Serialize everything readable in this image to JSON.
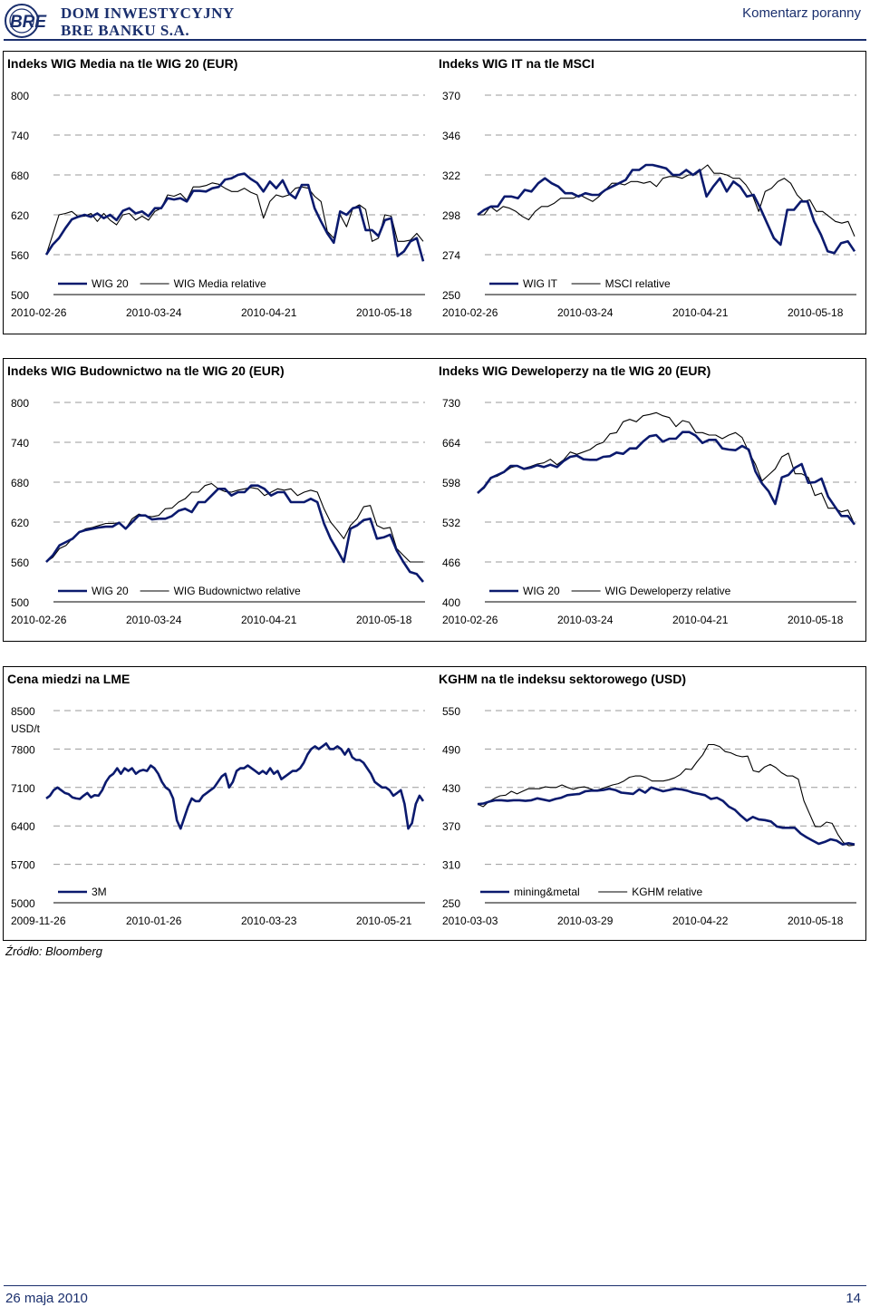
{
  "header": {
    "brand_line1": "DOM INWESTYCYJNY",
    "brand_line2": "BRE BANKU S.A.",
    "logo_text": "BRE",
    "doc_type": "Komentarz poranny"
  },
  "footer": {
    "date": "26 maja 2010",
    "page": "14"
  },
  "source_note": "Źródło: Bloomberg",
  "colors": {
    "primary_series": "#0b1a6e",
    "secondary_series": "#000000",
    "grid": "#9a9a9a",
    "brand": "#1a2f6d"
  },
  "chart_data": [
    {
      "type": "line",
      "title": "Indeks WIG Media na tle WIG 20 (EUR)",
      "y_ticks": [
        "800",
        "740",
        "680",
        "620",
        "560",
        "500"
      ],
      "ylim": [
        500,
        800
      ],
      "x_tick_labels": [
        "2010-02-26",
        "2010-03-24",
        "2010-04-21",
        "2010-05-18"
      ],
      "series": [
        {
          "name": "WIG 20",
          "values": [
            560,
            575,
            585,
            600,
            613,
            617,
            620,
            617,
            622,
            615,
            620,
            612,
            626,
            630,
            622,
            625,
            618,
            630,
            630,
            645,
            643,
            645,
            640,
            656,
            656,
            655,
            660,
            662,
            673,
            675,
            680,
            682,
            674,
            668,
            655,
            670,
            660,
            672,
            652,
            645,
            665,
            665,
            630,
            610,
            592,
            578,
            625,
            620,
            630,
            632,
            597,
            597,
            588,
            612,
            615,
            558,
            565,
            580,
            585,
            550
          ]
        },
        {
          "name": "WIG Media relative",
          "values": [
            560,
            590,
            620,
            622,
            625,
            617,
            618,
            622,
            610,
            622,
            612,
            605,
            620,
            622,
            612,
            618,
            612,
            625,
            630,
            650,
            648,
            652,
            642,
            662,
            662,
            664,
            668,
            666,
            660,
            655,
            655,
            660,
            654,
            650,
            615,
            640,
            650,
            647,
            650,
            660,
            662,
            660,
            648,
            640,
            595,
            585,
            620,
            602,
            630,
            635,
            628,
            580,
            585,
            620,
            618,
            580,
            580,
            582,
            592,
            580
          ]
        }
      ]
    },
    {
      "type": "line",
      "title": "Indeks WIG IT na tle MSCI",
      "y_ticks": [
        "370",
        "346",
        "322",
        "298",
        "274",
        "250"
      ],
      "ylim": [
        250,
        370
      ],
      "x_tick_labels": [
        "2010-02-26",
        "2010-03-24",
        "2010-04-21",
        "2010-05-18"
      ],
      "series": [
        {
          "name": "WIG IT",
          "values": [
            298,
            301,
            303,
            303,
            309,
            309,
            308,
            313,
            312,
            317,
            320,
            317,
            315,
            311,
            311,
            309,
            311,
            310,
            310,
            313,
            315,
            317,
            319,
            325,
            325,
            328,
            328,
            327,
            326,
            322,
            322,
            325,
            322,
            325,
            309,
            315,
            320,
            312,
            318,
            315,
            309,
            310,
            302,
            293,
            284,
            280,
            301,
            301,
            306,
            306,
            294,
            286,
            276,
            275,
            281,
            282,
            276
          ]
        },
        {
          "name": "MSCI relative",
          "values": [
            298,
            298,
            303,
            300,
            303,
            302,
            300,
            297,
            295,
            300,
            303,
            303,
            305,
            308,
            308,
            308,
            310,
            308,
            306,
            309,
            313,
            317,
            317,
            316,
            318,
            318,
            317,
            318,
            315,
            320,
            321,
            321,
            320,
            322,
            322,
            325,
            328,
            323,
            323,
            322,
            320,
            320,
            316,
            310,
            300,
            312,
            314,
            318,
            320,
            317,
            310,
            306,
            307,
            300,
            300,
            297,
            294,
            293,
            294,
            285
          ]
        }
      ]
    },
    {
      "type": "line",
      "title": "Indeks WIG Budownictwo na tle WIG 20 (EUR)",
      "y_ticks": [
        "800",
        "740",
        "680",
        "620",
        "560",
        "500"
      ],
      "ylim": [
        500,
        800
      ],
      "x_tick_labels": [
        "2010-02-26",
        "2010-03-24",
        "2010-04-21",
        "2010-05-18"
      ],
      "series": [
        {
          "name": "WIG 20",
          "values": [
            560,
            570,
            585,
            590,
            595,
            605,
            608,
            610,
            612,
            613,
            613,
            619,
            610,
            620,
            630,
            630,
            624,
            625,
            625,
            629,
            637,
            640,
            635,
            650,
            650,
            660,
            670,
            670,
            660,
            665,
            665,
            675,
            675,
            670,
            660,
            665,
            665,
            650,
            650,
            650,
            655,
            650,
            618,
            595,
            578,
            560,
            610,
            615,
            623,
            625,
            595,
            597,
            601,
            577,
            560,
            545,
            542,
            530
          ]
        },
        {
          "name": "WIG Budownictwo relative",
          "values": [
            560,
            567,
            580,
            585,
            596,
            605,
            610,
            612,
            615,
            618,
            618,
            619,
            610,
            625,
            632,
            629,
            628,
            630,
            640,
            641,
            650,
            655,
            665,
            665,
            675,
            678,
            670,
            666,
            665,
            668,
            670,
            672,
            670,
            660,
            665,
            670,
            668,
            670,
            660,
            665,
            668,
            665,
            640,
            620,
            608,
            595,
            615,
            625,
            643,
            645,
            615,
            610,
            612,
            580,
            570,
            560,
            560,
            560
          ]
        }
      ]
    },
    {
      "type": "line",
      "title": "Indeks WIG Deweloperzy na tle WIG 20 (EUR)",
      "y_ticks": [
        "730",
        "664",
        "598",
        "532",
        "466",
        "400"
      ],
      "ylim": [
        400,
        730
      ],
      "x_tick_labels": [
        "2010-02-26",
        "2010-03-24",
        "2010-04-21",
        "2010-05-18"
      ],
      "series": [
        {
          "name": "WIG 20",
          "values": [
            580,
            590,
            605,
            610,
            615,
            625,
            625,
            620,
            622,
            626,
            623,
            627,
            623,
            633,
            640,
            642,
            636,
            635,
            635,
            640,
            641,
            647,
            645,
            654,
            654,
            665,
            674,
            676,
            665,
            670,
            670,
            681,
            681,
            675,
            663,
            668,
            668,
            654,
            652,
            651,
            658,
            652,
            616,
            596,
            583,
            562,
            606,
            610,
            622,
            628,
            597,
            598,
            604,
            574,
            558,
            542,
            542,
            528
          ]
        },
        {
          "name": "WIG Deweloperzy relative",
          "values": [
            580,
            588,
            605,
            608,
            614,
            622,
            625,
            621,
            624,
            628,
            630,
            636,
            627,
            635,
            648,
            644,
            648,
            652,
            660,
            664,
            678,
            680,
            698,
            702,
            698,
            708,
            710,
            713,
            708,
            705,
            690,
            700,
            697,
            680,
            680,
            676,
            676,
            670,
            676,
            680,
            672,
            648,
            628,
            600,
            610,
            620,
            640,
            646,
            612,
            612,
            606,
            576,
            580,
            555,
            555,
            549,
            552,
            528
          ]
        }
      ]
    },
    {
      "type": "line",
      "title": "Cena miedzi na LME",
      "y_ticks": [
        "8500",
        "7800",
        "7100",
        "6400",
        "5700",
        "5000"
      ],
      "y_unit_label": "USD/t",
      "ylim": [
        5000,
        8500
      ],
      "x_tick_labels": [
        "2009-11-26",
        "2010-01-26",
        "2010-03-23",
        "2010-05-21"
      ],
      "series": [
        {
          "name": "3M",
          "values": [
            6900,
            6950,
            7050,
            7100,
            7050,
            7000,
            6980,
            6920,
            6900,
            6890,
            6950,
            7000,
            6920,
            6960,
            6950,
            7050,
            7200,
            7300,
            7350,
            7450,
            7350,
            7450,
            7400,
            7450,
            7350,
            7400,
            7420,
            7400,
            7500,
            7450,
            7350,
            7200,
            7100,
            7050,
            6900,
            6500,
            6350,
            6550,
            6750,
            6900,
            6850,
            6850,
            6950,
            7000,
            7050,
            7100,
            7200,
            7300,
            7350,
            7100,
            7200,
            7400,
            7450,
            7450,
            7500,
            7450,
            7400,
            7350,
            7400,
            7350,
            7450,
            7350,
            7400,
            7250,
            7300,
            7350,
            7400,
            7400,
            7450,
            7550,
            7700,
            7800,
            7850,
            7800,
            7850,
            7900,
            7800,
            7800,
            7850,
            7800,
            7700,
            7800,
            7650,
            7600,
            7600,
            7550,
            7450,
            7350,
            7200,
            7150,
            7100,
            7100,
            7050,
            6950,
            7000,
            7050,
            6800,
            6350,
            6450,
            6800,
            6950,
            6850
          ]
        }
      ]
    },
    {
      "type": "line",
      "title": "KGHM na tle indeksu sektorowego (USD)",
      "y_ticks": [
        "550",
        "490",
        "430",
        "370",
        "310",
        "250"
      ],
      "ylim": [
        250,
        550
      ],
      "x_tick_labels": [
        "2010-03-03",
        "2010-03-29",
        "2010-04-22",
        "2010-05-18"
      ],
      "series": [
        {
          "name": "mining&metal",
          "values": [
            404,
            405,
            408,
            410,
            410,
            409,
            410,
            410,
            409,
            410,
            413,
            411,
            409,
            412,
            414,
            418,
            419,
            420,
            424,
            425,
            425,
            426,
            428,
            426,
            422,
            421,
            420,
            427,
            422,
            430,
            427,
            424,
            426,
            428,
            427,
            425,
            422,
            420,
            418,
            412,
            414,
            409,
            400,
            395,
            386,
            378,
            384,
            380,
            379,
            377,
            369,
            367,
            367,
            367,
            358,
            352,
            347,
            342,
            345,
            349,
            347,
            341,
            343,
            341
          ]
        },
        {
          "name": "KGHM relative",
          "values": [
            404,
            400,
            408,
            413,
            417,
            418,
            424,
            420,
            424,
            428,
            428,
            428,
            431,
            430,
            430,
            434,
            430,
            427,
            430,
            431,
            428,
            425,
            428,
            431,
            434,
            436,
            440,
            446,
            448,
            448,
            445,
            440,
            440,
            440,
            442,
            445,
            450,
            459,
            458,
            470,
            481,
            497,
            497,
            494,
            486,
            484,
            480,
            478,
            479,
            456,
            454,
            462,
            466,
            461,
            453,
            448,
            448,
            443,
            409,
            389,
            369,
            369,
            376,
            374,
            357,
            344,
            339,
            340
          ]
        }
      ]
    }
  ]
}
